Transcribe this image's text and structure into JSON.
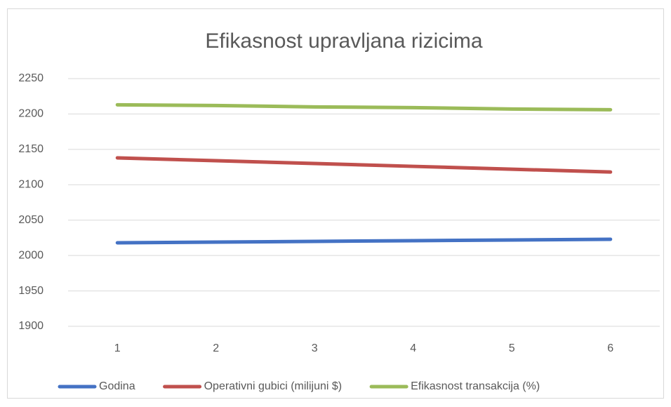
{
  "chart_data": {
    "type": "line",
    "title": "Efikasnost upravljana rizicima",
    "categories": [
      "1",
      "2",
      "3",
      "4",
      "5",
      "6"
    ],
    "series": [
      {
        "name": "Godina",
        "color": "#4472c4",
        "values": [
          2018,
          2019,
          2020,
          2021,
          2022,
          2023
        ]
      },
      {
        "name": "Operativni gubici (milijuni $)",
        "color": "#c0504d",
        "values": [
          2138,
          2134,
          2130,
          2126,
          2122,
          2118
        ]
      },
      {
        "name": "Efikasnost transakcija (%)",
        "color": "#9bbb59",
        "values": [
          2213,
          2212,
          2210,
          2209,
          2207,
          2206
        ]
      }
    ],
    "ylim": [
      1900,
      2250
    ],
    "yticks": [
      1900,
      1950,
      2000,
      2050,
      2100,
      2150,
      2200,
      2250
    ],
    "grid": true,
    "legend": "bottom"
  }
}
